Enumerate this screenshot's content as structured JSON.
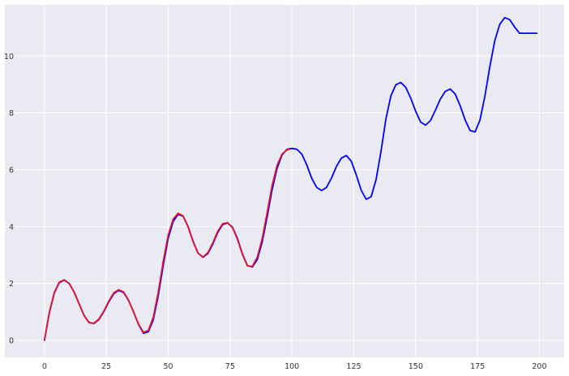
{
  "chart_data": {
    "type": "line",
    "title": "",
    "xlabel": "",
    "ylabel": "",
    "xlim": [
      -16,
      210
    ],
    "ylim": [
      -0.6,
      11.8
    ],
    "xticks": [
      0,
      25,
      50,
      75,
      100,
      125,
      150,
      175,
      200
    ],
    "xtick_labels": [
      "0",
      "25",
      "50",
      "75",
      "100",
      "125",
      "150",
      "175",
      "200"
    ],
    "yticks": [
      0,
      2,
      4,
      6,
      8,
      10
    ],
    "ytick_labels": [
      "0",
      "2",
      "4",
      "6",
      "8",
      "10"
    ],
    "grid": true,
    "background": "#eaeaf2",
    "grid_color": "#ffffff",
    "series": [
      {
        "color": "#0000ff",
        "x": [
          0,
          2,
          4,
          6,
          8,
          10,
          12,
          14,
          16,
          18,
          20,
          22,
          24,
          26,
          28,
          30,
          32,
          34,
          36,
          38,
          40,
          42,
          44,
          46,
          48,
          50,
          52,
          54,
          56,
          58,
          60,
          62,
          64,
          66,
          68,
          70,
          72,
          74,
          76,
          78,
          80,
          82,
          84,
          86,
          88,
          90,
          92,
          94,
          96,
          98,
          100,
          102,
          104,
          106,
          108,
          110,
          112,
          114,
          116,
          118,
          120,
          122,
          124,
          126,
          128,
          130,
          132,
          134,
          136,
          138,
          140,
          142,
          144,
          146,
          148,
          150,
          152,
          154,
          156,
          158,
          160,
          162,
          164,
          166,
          168,
          170,
          172,
          174,
          176,
          178,
          180,
          182,
          184,
          186,
          188,
          190,
          192,
          194,
          196,
          198,
          199
        ],
        "y": [
          0.0,
          0.98,
          1.67,
          2.03,
          2.12,
          2.0,
          1.7,
          1.29,
          0.88,
          0.63,
          0.59,
          0.73,
          1.01,
          1.35,
          1.64,
          1.76,
          1.68,
          1.4,
          1.0,
          0.56,
          0.25,
          0.3,
          0.73,
          1.58,
          2.64,
          3.59,
          4.18,
          4.43,
          4.37,
          4.01,
          3.5,
          3.08,
          2.92,
          3.05,
          3.38,
          3.79,
          4.07,
          4.13,
          3.98,
          3.58,
          3.04,
          2.63,
          2.58,
          2.84,
          3.46,
          4.35,
          5.3,
          6.05,
          6.52,
          6.72,
          6.75,
          6.72,
          6.55,
          6.17,
          5.7,
          5.38,
          5.27,
          5.38,
          5.71,
          6.12,
          6.41,
          6.5,
          6.3,
          5.82,
          5.28,
          4.96,
          5.05,
          5.65,
          6.65,
          7.8,
          8.6,
          8.99,
          9.07,
          8.9,
          8.52,
          8.06,
          7.68,
          7.57,
          7.73,
          8.1,
          8.49,
          8.76,
          8.84,
          8.66,
          8.25,
          7.75,
          7.38,
          7.33,
          7.75,
          8.6,
          9.64,
          10.55,
          11.12,
          11.35,
          11.28,
          11.02,
          10.8,
          10.8,
          10.8,
          10.8,
          10.8
        ]
      },
      {
        "color": "#e8102a",
        "x": [
          0,
          2,
          4,
          6,
          8,
          10,
          12,
          14,
          16,
          18,
          20,
          22,
          24,
          26,
          28,
          30,
          32,
          34,
          36,
          38,
          40,
          42,
          44,
          46,
          48,
          50,
          52,
          54,
          56,
          58,
          60,
          62,
          64,
          66,
          68,
          70,
          72,
          74,
          76,
          78,
          80,
          82,
          84,
          86,
          88,
          90,
          92,
          94,
          96,
          98,
          99
        ],
        "y": [
          0.0,
          1.0,
          1.69,
          2.05,
          2.13,
          2.0,
          1.69,
          1.28,
          0.87,
          0.62,
          0.6,
          0.75,
          1.03,
          1.38,
          1.67,
          1.78,
          1.7,
          1.41,
          1.0,
          0.57,
          0.28,
          0.35,
          0.82,
          1.7,
          2.78,
          3.7,
          4.26,
          4.47,
          4.38,
          4.0,
          3.48,
          3.07,
          2.93,
          3.08,
          3.42,
          3.83,
          4.1,
          4.14,
          3.96,
          3.55,
          3.02,
          2.62,
          2.6,
          2.92,
          3.58,
          4.5,
          5.45,
          6.15,
          6.55,
          6.7,
          6.72
        ]
      }
    ]
  }
}
